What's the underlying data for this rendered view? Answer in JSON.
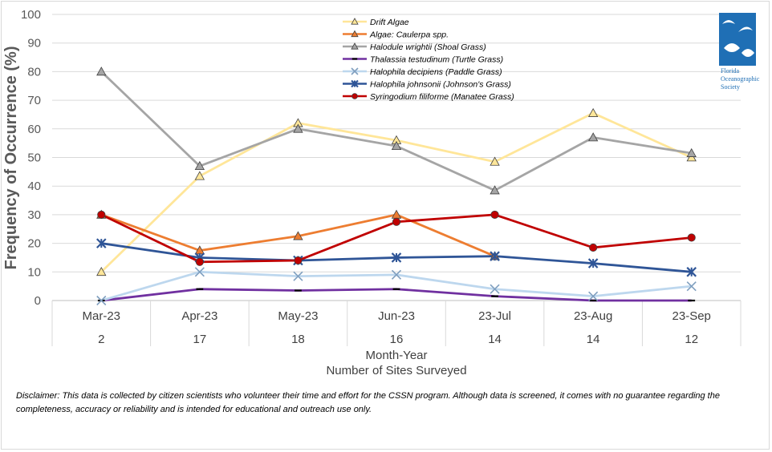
{
  "chart_data": {
    "type": "line",
    "categories": [
      "Mar-23",
      "Apr-23",
      "May-23",
      "Jun-23",
      "23-Jul",
      "23-Aug",
      "23-Sep"
    ],
    "sites_surveyed": [
      "2",
      "17",
      "18",
      "16",
      "14",
      "14",
      "12"
    ],
    "xlabel": "Month-Year",
    "xlabel2": "Number of Sites Surveyed",
    "ylabel": "Frequency of Occurrence (%)",
    "ylim": [
      0,
      100
    ],
    "yticks": [
      0,
      10,
      20,
      30,
      40,
      50,
      60,
      70,
      80,
      90,
      100
    ],
    "gridlines": "horizontal",
    "legend_position": "top-center",
    "series": [
      {
        "name": "Drift Algae",
        "color": "#ffe699",
        "marker": "triangle",
        "values": [
          10,
          43.5,
          62,
          56,
          48.5,
          65.5,
          50
        ]
      },
      {
        "name": "Algae: Caulerpa spp.",
        "color": "#ed7d31",
        "marker": "triangle",
        "values": [
          30,
          17.5,
          22.5,
          30,
          15.5,
          null,
          null
        ]
      },
      {
        "name": "Halodule wrightii (Shoal Grass)",
        "color": "#a5a5a5",
        "marker": "triangle",
        "values": [
          80,
          47,
          60,
          54,
          38.5,
          57,
          51.5
        ]
      },
      {
        "name": "Thalassia testudinum (Turtle Grass)",
        "color": "#7030a0",
        "marker": "dash",
        "values": [
          0,
          4,
          3.5,
          4,
          1.5,
          0,
          0
        ]
      },
      {
        "name": "Halophila decipiens (Paddle Grass)",
        "color": "#bdd7ee",
        "marker": "x",
        "values": [
          0,
          10,
          8.5,
          9,
          4,
          1.5,
          5
        ]
      },
      {
        "name": "Halophila johnsonii (Johnson's Grass)",
        "color": "#2f5597",
        "marker": "star",
        "values": [
          20,
          15,
          14,
          15,
          15.5,
          13,
          10
        ]
      },
      {
        "name": "Syringodium filiforme (Manatee Grass)",
        "color": "#c00000",
        "marker": "circle",
        "values": [
          30,
          13.5,
          14,
          27.5,
          30,
          18.5,
          22
        ]
      }
    ]
  },
  "logo": {
    "line1": "Florida",
    "line2": "Oceanographic",
    "line3": "Society"
  },
  "disclaimer": "Disclaimer: This data is collected by citizen scientists who volunteer their time and effort for the CSSN program. Although data is screened, it comes with no guarantee regarding the completeness, accuracy or reliability and is intended for educational and outreach use only."
}
